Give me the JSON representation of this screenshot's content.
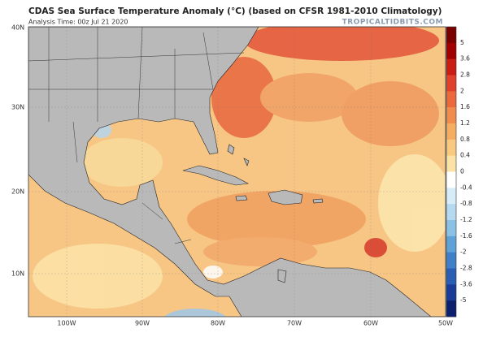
{
  "header": {
    "title": "CDAS Sea Surface Temperature Anomaly (°C) (based on CFSR 1981-2010 Climatology)",
    "subtitle": "Analysis Time: 00z Jul 21 2020",
    "watermark": "TROPICALTIDBITS.COM"
  },
  "map": {
    "lat_labels": [
      "40N",
      "30N",
      "20N",
      "10N"
    ],
    "lon_labels": [
      "100W",
      "90W",
      "80W",
      "70W",
      "60W",
      "50W"
    ]
  },
  "colorbar": {
    "labels": [
      "5",
      "3.6",
      "2.8",
      "2",
      "1.6",
      "1.2",
      "0.8",
      "0.4",
      "0",
      "-0.4",
      "-0.8",
      "-1.2",
      "-1.6",
      "-2",
      "-2.8",
      "-3.6",
      "-5"
    ]
  }
}
